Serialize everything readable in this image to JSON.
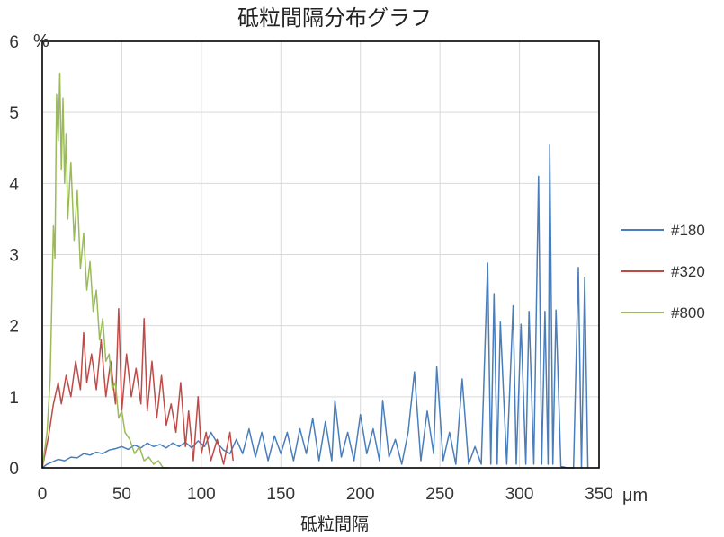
{
  "chart_data": {
    "type": "line",
    "title": "砥粒間隔分布グラフ",
    "xlabel": "砥粒間隔",
    "x_unit": "μm",
    "y_unit": "%",
    "xlim": [
      0,
      350
    ],
    "ylim": [
      0,
      6
    ],
    "x_ticks": [
      0,
      50,
      100,
      150,
      200,
      250,
      300,
      350
    ],
    "y_ticks": [
      0,
      1,
      2,
      3,
      4,
      5,
      6
    ],
    "grid": true,
    "legend_position": "right",
    "series": [
      {
        "name": "#180",
        "color": "#4a7ebb",
        "points": [
          [
            0,
            0
          ],
          [
            3,
            0.05
          ],
          [
            6,
            0.08
          ],
          [
            10,
            0.12
          ],
          [
            14,
            0.1
          ],
          [
            18,
            0.15
          ],
          [
            22,
            0.14
          ],
          [
            26,
            0.2
          ],
          [
            30,
            0.18
          ],
          [
            34,
            0.22
          ],
          [
            38,
            0.2
          ],
          [
            42,
            0.25
          ],
          [
            46,
            0.27
          ],
          [
            50,
            0.3
          ],
          [
            54,
            0.26
          ],
          [
            58,
            0.32
          ],
          [
            62,
            0.28
          ],
          [
            66,
            0.35
          ],
          [
            70,
            0.3
          ],
          [
            74,
            0.33
          ],
          [
            78,
            0.28
          ],
          [
            82,
            0.35
          ],
          [
            86,
            0.3
          ],
          [
            90,
            0.36
          ],
          [
            94,
            0.28
          ],
          [
            98,
            0.38
          ],
          [
            102,
            0.3
          ],
          [
            106,
            0.5
          ],
          [
            110,
            0.35
          ],
          [
            114,
            0.25
          ],
          [
            118,
            0.2
          ],
          [
            122,
            0.4
          ],
          [
            126,
            0.2
          ],
          [
            130,
            0.55
          ],
          [
            134,
            0.15
          ],
          [
            138,
            0.5
          ],
          [
            142,
            0.1
          ],
          [
            146,
            0.45
          ],
          [
            150,
            0.2
          ],
          [
            154,
            0.5
          ],
          [
            158,
            0.1
          ],
          [
            162,
            0.55
          ],
          [
            166,
            0.2
          ],
          [
            170,
            0.7
          ],
          [
            174,
            0.1
          ],
          [
            178,
            0.65
          ],
          [
            182,
            0.1
          ],
          [
            184,
            0.95
          ],
          [
            188,
            0.15
          ],
          [
            192,
            0.5
          ],
          [
            196,
            0.1
          ],
          [
            200,
            0.75
          ],
          [
            204,
            0.2
          ],
          [
            208,
            0.55
          ],
          [
            212,
            0.1
          ],
          [
            214,
            0.95
          ],
          [
            218,
            0.15
          ],
          [
            222,
            0.4
          ],
          [
            226,
            0.05
          ],
          [
            230,
            0.5
          ],
          [
            234,
            1.35
          ],
          [
            238,
            0.1
          ],
          [
            242,
            0.8
          ],
          [
            246,
            0.2
          ],
          [
            248,
            1.42
          ],
          [
            252,
            0.1
          ],
          [
            256,
            0.5
          ],
          [
            260,
            0.05
          ],
          [
            264,
            1.25
          ],
          [
            268,
            0.05
          ],
          [
            272,
            0.3
          ],
          [
            276,
            0.05
          ],
          [
            280,
            2.88
          ],
          [
            282,
            0.05
          ],
          [
            284,
            2.45
          ],
          [
            286,
            0.05
          ],
          [
            288,
            2.05
          ],
          [
            292,
            0.05
          ],
          [
            296,
            2.28
          ],
          [
            298,
            0.05
          ],
          [
            301,
            2.02
          ],
          [
            304,
            0.05
          ],
          [
            306,
            2.2
          ],
          [
            309,
            0.05
          ],
          [
            312,
            4.1
          ],
          [
            314,
            0.05
          ],
          [
            316,
            2.2
          ],
          [
            318,
            0.05
          ],
          [
            319,
            4.55
          ],
          [
            321,
            0.05
          ],
          [
            323,
            2.22
          ],
          [
            326,
            0.02
          ],
          [
            330,
            0
          ],
          [
            334,
            0
          ],
          [
            337,
            2.82
          ],
          [
            339,
            0
          ],
          [
            341,
            2.68
          ],
          [
            343,
            0
          ]
        ]
      },
      {
        "name": "#320",
        "color": "#be4b48",
        "points": [
          [
            0,
            0
          ],
          [
            4,
            0.45
          ],
          [
            7,
            0.9
          ],
          [
            10,
            1.2
          ],
          [
            12,
            0.9
          ],
          [
            15,
            1.3
          ],
          [
            18,
            1.0
          ],
          [
            21,
            1.5
          ],
          [
            24,
            1.1
          ],
          [
            26,
            1.9
          ],
          [
            28,
            1.2
          ],
          [
            31,
            1.6
          ],
          [
            34,
            1.1
          ],
          [
            37,
            1.8
          ],
          [
            40,
            1.0
          ],
          [
            43,
            1.5
          ],
          [
            46,
            0.9
          ],
          [
            48,
            2.24
          ],
          [
            50,
            0.8
          ],
          [
            53,
            1.6
          ],
          [
            56,
            1.0
          ],
          [
            59,
            1.4
          ],
          [
            62,
            0.9
          ],
          [
            64,
            2.1
          ],
          [
            66,
            0.8
          ],
          [
            69,
            1.5
          ],
          [
            72,
            0.7
          ],
          [
            75,
            1.3
          ],
          [
            78,
            0.6
          ],
          [
            81,
            0.9
          ],
          [
            84,
            0.5
          ],
          [
            87,
            1.2
          ],
          [
            90,
            0.3
          ],
          [
            92,
            0.8
          ],
          [
            95,
            0.1
          ],
          [
            98,
            1.0
          ],
          [
            100,
            0.2
          ],
          [
            103,
            0.5
          ],
          [
            106,
            0.1
          ],
          [
            110,
            0.4
          ],
          [
            114,
            0.05
          ],
          [
            118,
            0.5
          ],
          [
            120,
            0.1
          ]
        ]
      },
      {
        "name": "#800",
        "color": "#9bbb59",
        "points": [
          [
            0,
            0
          ],
          [
            3,
            0.5
          ],
          [
            5,
            1.25
          ],
          [
            7,
            3.4
          ],
          [
            8,
            2.95
          ],
          [
            9,
            5.25
          ],
          [
            10,
            4.6
          ],
          [
            11,
            5.55
          ],
          [
            12,
            4.2
          ],
          [
            13,
            5.2
          ],
          [
            14,
            4.0
          ],
          [
            15,
            4.7
          ],
          [
            16,
            3.5
          ],
          [
            18,
            4.3
          ],
          [
            20,
            3.2
          ],
          [
            22,
            3.9
          ],
          [
            24,
            2.8
          ],
          [
            26,
            3.3
          ],
          [
            28,
            2.5
          ],
          [
            30,
            2.9
          ],
          [
            32,
            2.2
          ],
          [
            34,
            2.5
          ],
          [
            36,
            1.8
          ],
          [
            38,
            2.1
          ],
          [
            40,
            1.5
          ],
          [
            42,
            1.6
          ],
          [
            44,
            1.1
          ],
          [
            46,
            1.2
          ],
          [
            48,
            0.7
          ],
          [
            50,
            0.8
          ],
          [
            52,
            0.5
          ],
          [
            55,
            0.4
          ],
          [
            58,
            0.2
          ],
          [
            61,
            0.3
          ],
          [
            64,
            0.1
          ],
          [
            67,
            0.15
          ],
          [
            70,
            0.05
          ],
          [
            73,
            0.1
          ],
          [
            76,
            0
          ],
          [
            80,
            0
          ]
        ]
      }
    ]
  }
}
